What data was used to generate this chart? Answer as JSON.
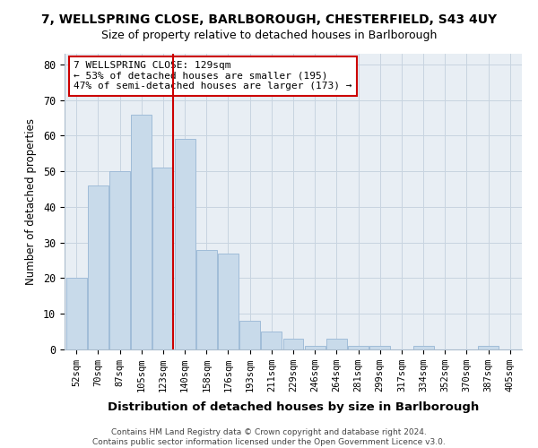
{
  "title_line1": "7, WELLSPRING CLOSE, BARLBOROUGH, CHESTERFIELD, S43 4UY",
  "title_line2": "Size of property relative to detached houses in Barlborough",
  "xlabel": "Distribution of detached houses by size in Barlborough",
  "ylabel": "Number of detached properties",
  "footer_line1": "Contains HM Land Registry data © Crown copyright and database right 2024.",
  "footer_line2": "Contains public sector information licensed under the Open Government Licence v3.0.",
  "categories": [
    "52sqm",
    "70sqm",
    "87sqm",
    "105sqm",
    "123sqm",
    "140sqm",
    "158sqm",
    "176sqm",
    "193sqm",
    "211sqm",
    "229sqm",
    "246sqm",
    "264sqm",
    "281sqm",
    "299sqm",
    "317sqm",
    "334sqm",
    "352sqm",
    "370sqm",
    "387sqm",
    "405sqm"
  ],
  "values": [
    20,
    46,
    50,
    66,
    51,
    59,
    28,
    27,
    8,
    5,
    3,
    1,
    3,
    1,
    1,
    0,
    1,
    0,
    0,
    1,
    0
  ],
  "bar_color": "#c8daea",
  "bar_edge_color": "#a0bcd8",
  "vline_color": "#cc0000",
  "annotation_box_color": "#ffffff",
  "annotation_box_edge": "#cc0000",
  "ylim": [
    0,
    83
  ],
  "yticks": [
    0,
    10,
    20,
    30,
    40,
    50,
    60,
    70,
    80
  ],
  "grid_color": "#c8d4e0",
  "background_color": "#ffffff",
  "axes_bg_color": "#e8eef4",
  "marker_label": "7 WELLSPRING CLOSE: 129sqm",
  "annotation_line2": "← 53% of detached houses are smaller (195)",
  "annotation_line3": "47% of semi-detached houses are larger (173) →",
  "vline_index": 4
}
